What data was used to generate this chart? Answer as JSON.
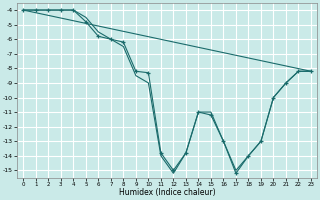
{
  "xlabel": "Humidex (Indice chaleur)",
  "background_color": "#caeae8",
  "grid_color": "#ffffff",
  "line_color": "#1a6b6b",
  "xlim": [
    -0.5,
    23.5
  ],
  "ylim": [
    -15.5,
    -3.5
  ],
  "yticks": [
    -4,
    -5,
    -6,
    -7,
    -8,
    -9,
    -10,
    -11,
    -12,
    -13,
    -14,
    -15
  ],
  "xticks": [
    0,
    1,
    2,
    3,
    4,
    5,
    6,
    7,
    8,
    9,
    10,
    11,
    12,
    13,
    14,
    15,
    16,
    17,
    18,
    19,
    20,
    21,
    22,
    23
  ],
  "series_marker": {
    "x": [
      0,
      1,
      2,
      3,
      4,
      5,
      6,
      7,
      8,
      9,
      10,
      11,
      12,
      13,
      14,
      15,
      16,
      17,
      18,
      19,
      20,
      21,
      22,
      23
    ],
    "y": [
      -4,
      -4,
      -4,
      -4,
      -4,
      -4.8,
      -5.8,
      -6.0,
      -6.2,
      -8.2,
      -8.3,
      -13.8,
      -15.0,
      -13.8,
      -11.0,
      -11.2,
      -13.0,
      -15.2,
      -14.0,
      -13.0,
      -10.0,
      -9.0,
      -8.2,
      -8.2
    ]
  },
  "series_smooth": {
    "x": [
      0,
      1,
      2,
      3,
      4,
      5,
      6,
      7,
      8,
      9,
      10,
      11,
      12,
      13,
      14,
      15,
      16,
      17,
      18,
      19,
      20,
      21,
      22,
      23
    ],
    "y": [
      -4,
      -4,
      -4,
      -4,
      -4,
      -4.5,
      -5.5,
      -6.0,
      -6.5,
      -8.5,
      -9.0,
      -14.0,
      -15.2,
      -13.8,
      -11.0,
      -11.0,
      -13.0,
      -15.0,
      -14.0,
      -13.0,
      -10.0,
      -9.0,
      -8.2,
      -8.2
    ]
  },
  "series_diagonal": {
    "x": [
      0,
      23
    ],
    "y": [
      -4,
      -8.2
    ]
  }
}
